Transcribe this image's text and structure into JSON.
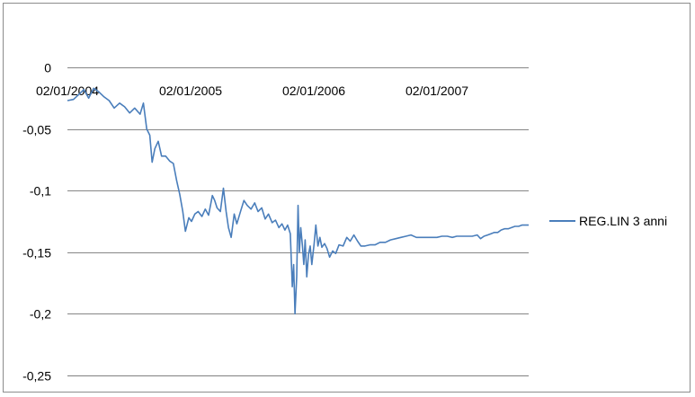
{
  "chart_data": {
    "type": "line",
    "title": "",
    "xlabel": "",
    "ylabel": "",
    "ylim": [
      -0.25,
      0
    ],
    "y_ticks": [
      {
        "value": 0,
        "label": "0"
      },
      {
        "value": -0.05,
        "label": "-0,05"
      },
      {
        "value": -0.1,
        "label": "-0,1"
      },
      {
        "value": -0.15,
        "label": "-0,15"
      },
      {
        "value": -0.2,
        "label": "-0,2"
      },
      {
        "value": -0.25,
        "label": "-0,25"
      }
    ],
    "x_ticks": [
      "02/01/2004",
      "02/01/2005",
      "02/01/2006",
      "02/01/2007"
    ],
    "xlim": [
      "2004-01-02",
      "2007-10-05"
    ],
    "grid": true,
    "legend_position": "right",
    "series": [
      {
        "name": "REG.LIN 3 anni",
        "color": "#4a7ebb",
        "points": [
          [
            "2004-01-02",
            -0.027
          ],
          [
            "2004-01-20",
            -0.026
          ],
          [
            "2004-02-05",
            -0.022
          ],
          [
            "2004-02-20",
            -0.018
          ],
          [
            "2004-03-05",
            -0.025
          ],
          [
            "2004-03-20",
            -0.017
          ],
          [
            "2004-04-05",
            -0.02
          ],
          [
            "2004-04-20",
            -0.024
          ],
          [
            "2004-05-05",
            -0.027
          ],
          [
            "2004-05-20",
            -0.033
          ],
          [
            "2004-06-05",
            -0.029
          ],
          [
            "2004-06-20",
            -0.032
          ],
          [
            "2004-07-05",
            -0.037
          ],
          [
            "2004-07-20",
            -0.033
          ],
          [
            "2004-08-05",
            -0.038
          ],
          [
            "2004-08-15",
            -0.029
          ],
          [
            "2004-08-25",
            -0.05
          ],
          [
            "2004-09-03",
            -0.055
          ],
          [
            "2004-09-10",
            -0.077
          ],
          [
            "2004-09-18",
            -0.066
          ],
          [
            "2004-09-28",
            -0.06
          ],
          [
            "2004-10-08",
            -0.072
          ],
          [
            "2004-10-20",
            -0.072
          ],
          [
            "2004-11-01",
            -0.076
          ],
          [
            "2004-11-12",
            -0.078
          ],
          [
            "2004-11-22",
            -0.092
          ],
          [
            "2004-12-01",
            -0.103
          ],
          [
            "2004-12-10",
            -0.117
          ],
          [
            "2004-12-18",
            -0.133
          ],
          [
            "2004-12-28",
            -0.122
          ],
          [
            "2005-01-05",
            -0.125
          ],
          [
            "2005-01-15",
            -0.119
          ],
          [
            "2005-01-25",
            -0.117
          ],
          [
            "2005-02-05",
            -0.121
          ],
          [
            "2005-02-15",
            -0.115
          ],
          [
            "2005-02-25",
            -0.12
          ],
          [
            "2005-03-08",
            -0.104
          ],
          [
            "2005-03-15",
            -0.108
          ],
          [
            "2005-03-22",
            -0.114
          ],
          [
            "2005-04-01",
            -0.117
          ],
          [
            "2005-04-10",
            -0.098
          ],
          [
            "2005-04-18",
            -0.117
          ],
          [
            "2005-04-25",
            -0.13
          ],
          [
            "2005-05-03",
            -0.138
          ],
          [
            "2005-05-12",
            -0.119
          ],
          [
            "2005-05-20",
            -0.127
          ],
          [
            "2005-06-01",
            -0.116
          ],
          [
            "2005-06-10",
            -0.108
          ],
          [
            "2005-06-20",
            -0.112
          ],
          [
            "2005-07-01",
            -0.115
          ],
          [
            "2005-07-12",
            -0.11
          ],
          [
            "2005-07-22",
            -0.117
          ],
          [
            "2005-08-02",
            -0.114
          ],
          [
            "2005-08-12",
            -0.123
          ],
          [
            "2005-08-22",
            -0.119
          ],
          [
            "2005-09-02",
            -0.126
          ],
          [
            "2005-09-12",
            -0.124
          ],
          [
            "2005-09-22",
            -0.13
          ],
          [
            "2005-10-01",
            -0.127
          ],
          [
            "2005-10-10",
            -0.132
          ],
          [
            "2005-10-18",
            -0.128
          ],
          [
            "2005-10-26",
            -0.135
          ],
          [
            "2005-11-01",
            -0.178
          ],
          [
            "2005-11-05",
            -0.16
          ],
          [
            "2005-11-09",
            -0.2
          ],
          [
            "2005-11-14",
            -0.17
          ],
          [
            "2005-11-18",
            -0.112
          ],
          [
            "2005-11-22",
            -0.15
          ],
          [
            "2005-11-26",
            -0.13
          ],
          [
            "2005-12-01",
            -0.145
          ],
          [
            "2005-12-05",
            -0.16
          ],
          [
            "2005-12-09",
            -0.14
          ],
          [
            "2005-12-14",
            -0.17
          ],
          [
            "2005-12-19",
            -0.152
          ],
          [
            "2005-12-24",
            -0.145
          ],
          [
            "2005-12-29",
            -0.16
          ],
          [
            "2006-01-05",
            -0.143
          ],
          [
            "2006-01-10",
            -0.128
          ],
          [
            "2006-01-16",
            -0.145
          ],
          [
            "2006-01-22",
            -0.138
          ],
          [
            "2006-01-28",
            -0.146
          ],
          [
            "2006-02-05",
            -0.143
          ],
          [
            "2006-02-12",
            -0.147
          ],
          [
            "2006-02-20",
            -0.154
          ],
          [
            "2006-03-01",
            -0.149
          ],
          [
            "2006-03-10",
            -0.151
          ],
          [
            "2006-03-20",
            -0.144
          ],
          [
            "2006-04-01",
            -0.145
          ],
          [
            "2006-04-12",
            -0.138
          ],
          [
            "2006-04-22",
            -0.141
          ],
          [
            "2006-05-03",
            -0.136
          ],
          [
            "2006-05-14",
            -0.141
          ],
          [
            "2006-05-24",
            -0.145
          ],
          [
            "2006-06-05",
            -0.145
          ],
          [
            "2006-06-20",
            -0.144
          ],
          [
            "2006-07-05",
            -0.144
          ],
          [
            "2006-07-20",
            -0.142
          ],
          [
            "2006-08-05",
            -0.142
          ],
          [
            "2006-08-20",
            -0.14
          ],
          [
            "2006-09-05",
            -0.139
          ],
          [
            "2006-09-20",
            -0.138
          ],
          [
            "2006-10-05",
            -0.137
          ],
          [
            "2006-10-20",
            -0.136
          ],
          [
            "2006-11-05",
            -0.138
          ],
          [
            "2006-11-20",
            -0.138
          ],
          [
            "2006-12-05",
            -0.138
          ],
          [
            "2006-12-20",
            -0.138
          ],
          [
            "2007-01-05",
            -0.138
          ],
          [
            "2007-01-20",
            -0.137
          ],
          [
            "2007-02-05",
            -0.137
          ],
          [
            "2007-02-20",
            -0.138
          ],
          [
            "2007-03-05",
            -0.137
          ],
          [
            "2007-03-20",
            -0.137
          ],
          [
            "2007-04-05",
            -0.137
          ],
          [
            "2007-04-20",
            -0.137
          ],
          [
            "2007-05-05",
            -0.136
          ],
          [
            "2007-05-15",
            -0.139
          ],
          [
            "2007-05-25",
            -0.137
          ],
          [
            "2007-06-05",
            -0.136
          ],
          [
            "2007-06-15",
            -0.135
          ],
          [
            "2007-06-25",
            -0.134
          ],
          [
            "2007-07-05",
            -0.134
          ],
          [
            "2007-07-15",
            -0.132
          ],
          [
            "2007-07-25",
            -0.131
          ],
          [
            "2007-08-05",
            -0.131
          ],
          [
            "2007-08-15",
            -0.13
          ],
          [
            "2007-08-25",
            -0.129
          ],
          [
            "2007-09-05",
            -0.129
          ],
          [
            "2007-09-15",
            -0.128
          ],
          [
            "2007-09-25",
            -0.128
          ],
          [
            "2007-10-05",
            -0.128
          ]
        ]
      }
    ]
  }
}
